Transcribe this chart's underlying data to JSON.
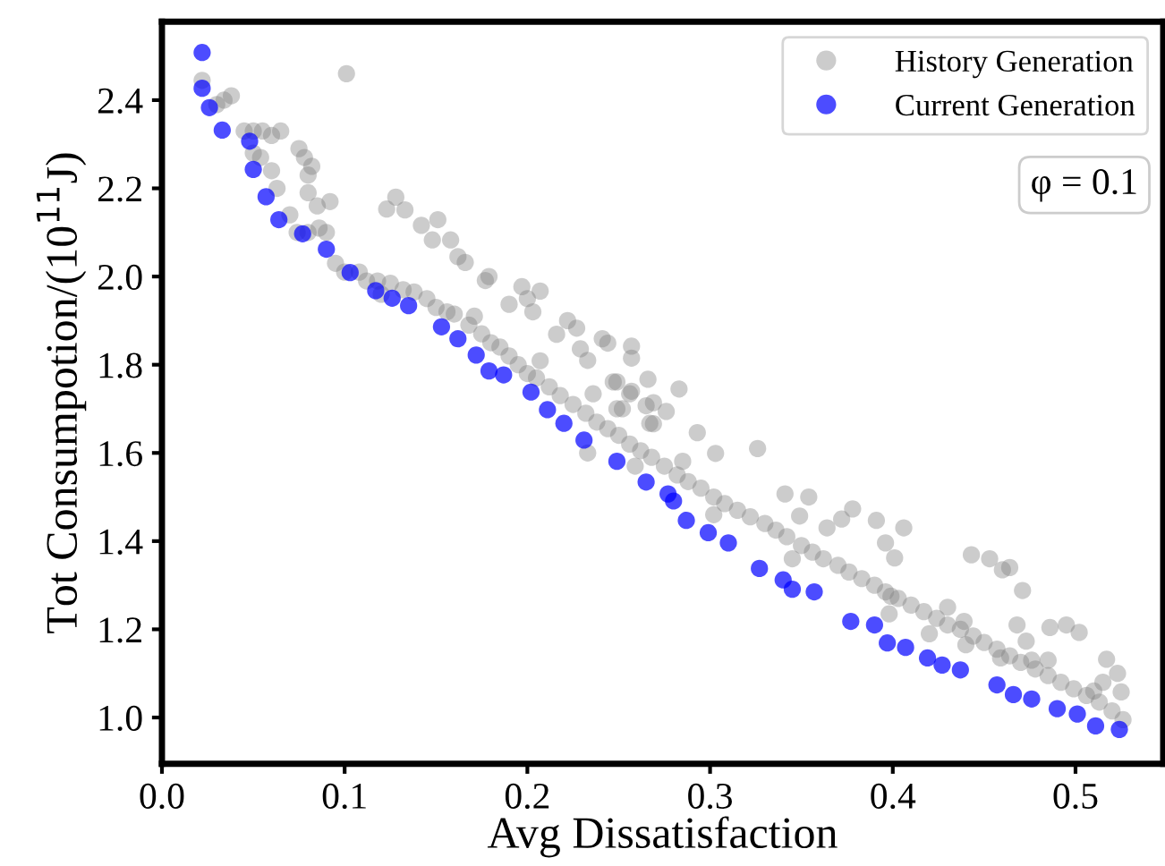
{
  "chart_data": {
    "type": "scatter",
    "xlabel": "Avg Dissatisfaction",
    "ylabel": "Tot Consumpotion/(10$^{11}$J)",
    "xlim": [
      0,
      0.548
    ],
    "ylim": [
      0.895,
      2.578
    ],
    "xticks": [
      {
        "value": 0,
        "label": "0.0"
      },
      0.1,
      0.2,
      0.3,
      0.4,
      0.5
    ],
    "yticks": [
      {
        "value": 1.0,
        "label": "1.0"
      },
      1.2,
      1.4,
      1.6,
      1.8,
      {
        "value": 2.0,
        "label": "2.0"
      },
      2.2,
      2.4
    ],
    "grid": false,
    "legend": "top right",
    "marker": "circle",
    "annotations": [
      "φ = 0.1"
    ],
    "series": [
      {
        "name": "History Generation",
        "color": "#808080",
        "x": [
          0.022,
          0.03,
          0.034,
          0.038,
          0.045,
          0.05,
          0.055,
          0.06,
          0.065,
          0.05,
          0.054,
          0.06,
          0.063,
          0.075,
          0.078,
          0.082,
          0.08,
          0.092,
          0.07,
          0.074,
          0.08,
          0.086,
          0.085,
          0.08,
          0.101,
          0.095,
          0.1,
          0.108,
          0.09,
          0.12,
          0.123,
          0.128,
          0.133,
          0.142,
          0.148,
          0.151,
          0.158,
          0.162,
          0.166,
          0.177,
          0.179,
          0.171,
          0.19,
          0.197,
          0.2,
          0.207,
          0.203,
          0.207,
          0.216,
          0.222,
          0.227,
          0.229,
          0.233,
          0.241,
          0.257,
          0.257,
          0.266,
          0.236,
          0.249,
          0.257,
          0.269,
          0.269,
          0.249,
          0.244,
          0.247,
          0.256,
          0.265,
          0.276,
          0.283,
          0.267,
          0.252,
          0.293,
          0.303,
          0.326,
          0.285,
          0.341,
          0.354,
          0.349,
          0.364,
          0.378,
          0.372,
          0.391,
          0.406,
          0.396,
          0.401,
          0.443,
          0.453,
          0.46,
          0.464,
          0.471,
          0.468,
          0.486,
          0.495,
          0.502,
          0.439,
          0.399,
          0.473,
          0.476,
          0.517,
          0.523,
          0.525,
          0.515,
          0.112,
          0.118,
          0.125,
          0.132,
          0.138,
          0.145,
          0.15,
          0.156,
          0.16,
          0.168,
          0.175,
          0.18,
          0.185,
          0.19,
          0.195,
          0.2,
          0.205,
          0.212,
          0.218,
          0.225,
          0.232,
          0.238,
          0.244,
          0.25,
          0.256,
          0.262,
          0.268,
          0.275,
          0.282,
          0.288,
          0.295,
          0.302,
          0.308,
          0.315,
          0.322,
          0.33,
          0.336,
          0.342,
          0.35,
          0.356,
          0.362,
          0.37,
          0.376,
          0.383,
          0.39,
          0.396,
          0.403,
          0.41,
          0.417,
          0.424,
          0.43,
          0.437,
          0.444,
          0.45,
          0.457,
          0.464,
          0.47,
          0.478,
          0.485,
          0.492,
          0.499,
          0.506,
          0.513,
          0.52,
          0.526,
          0.233,
          0.259,
          0.302,
          0.345,
          0.398,
          0.42,
          0.44,
          0.43,
          0.459,
          0.485,
          0.51
        ],
        "values": [
          2.445,
          2.39,
          2.4,
          2.41,
          2.33,
          2.33,
          2.33,
          2.32,
          2.33,
          2.28,
          2.27,
          2.24,
          2.2,
          2.29,
          2.27,
          2.25,
          2.23,
          2.17,
          2.14,
          2.1,
          2.1,
          2.11,
          2.16,
          2.19,
          2.46,
          2.03,
          2.01,
          2.01,
          2.1,
          1.96,
          2.153,
          2.18,
          2.151,
          2.116,
          2.083,
          2.129,
          2.083,
          2.045,
          2.032,
          1.991,
          2.0,
          1.91,
          1.937,
          1.977,
          1.95,
          1.967,
          1.92,
          1.809,
          1.869,
          1.9,
          1.883,
          1.836,
          1.81,
          1.859,
          1.842,
          1.815,
          1.767,
          1.734,
          1.761,
          1.74,
          1.714,
          1.666,
          1.7,
          1.849,
          1.761,
          1.734,
          1.707,
          1.694,
          1.745,
          1.667,
          1.7,
          1.646,
          1.599,
          1.61,
          1.581,
          1.507,
          1.5,
          1.457,
          1.43,
          1.473,
          1.45,
          1.447,
          1.43,
          1.396,
          1.362,
          1.369,
          1.36,
          1.335,
          1.34,
          1.288,
          1.21,
          1.204,
          1.21,
          1.193,
          1.218,
          1.275,
          1.173,
          1.13,
          1.132,
          1.1,
          1.058,
          1.08,
          1.99,
          1.99,
          1.985,
          1.97,
          1.965,
          1.95,
          1.93,
          1.92,
          1.915,
          1.89,
          1.87,
          1.85,
          1.84,
          1.82,
          1.8,
          1.78,
          1.77,
          1.75,
          1.73,
          1.71,
          1.69,
          1.67,
          1.655,
          1.64,
          1.62,
          1.605,
          1.59,
          1.57,
          1.55,
          1.535,
          1.52,
          1.5,
          1.485,
          1.47,
          1.455,
          1.44,
          1.425,
          1.41,
          1.39,
          1.375,
          1.36,
          1.345,
          1.33,
          1.315,
          1.3,
          1.285,
          1.27,
          1.255,
          1.24,
          1.225,
          1.21,
          1.2,
          1.185,
          1.17,
          1.155,
          1.14,
          1.125,
          1.11,
          1.095,
          1.08,
          1.065,
          1.05,
          1.035,
          1.015,
          0.995,
          1.6,
          1.57,
          1.46,
          1.36,
          1.235,
          1.19,
          1.165,
          1.25,
          1.135,
          1.13,
          1.06
        ]
      },
      {
        "name": "Current Generation",
        "color": "#0000ff",
        "x": [
          0.022,
          0.022,
          0.026,
          0.033,
          0.048,
          0.05,
          0.057,
          0.064,
          0.077,
          0.09,
          0.103,
          0.117,
          0.126,
          0.135,
          0.153,
          0.162,
          0.172,
          0.179,
          0.187,
          0.202,
          0.211,
          0.22,
          0.231,
          0.249,
          0.265,
          0.277,
          0.28,
          0.287,
          0.299,
          0.31,
          0.327,
          0.34,
          0.345,
          0.357,
          0.377,
          0.39,
          0.397,
          0.407,
          0.419,
          0.427,
          0.437,
          0.457,
          0.466,
          0.476,
          0.49,
          0.501,
          0.511,
          0.524
        ],
        "values": [
          2.508,
          2.427,
          2.383,
          2.332,
          2.307,
          2.243,
          2.181,
          2.129,
          2.097,
          2.062,
          2.009,
          1.968,
          1.951,
          1.934,
          1.886,
          1.859,
          1.822,
          1.786,
          1.777,
          1.738,
          1.698,
          1.667,
          1.629,
          1.581,
          1.534,
          1.507,
          1.491,
          1.447,
          1.419,
          1.396,
          1.338,
          1.312,
          1.291,
          1.285,
          1.218,
          1.21,
          1.169,
          1.159,
          1.135,
          1.119,
          1.108,
          1.074,
          1.052,
          1.042,
          1.02,
          1.008,
          0.981,
          0.973
        ]
      }
    ]
  }
}
